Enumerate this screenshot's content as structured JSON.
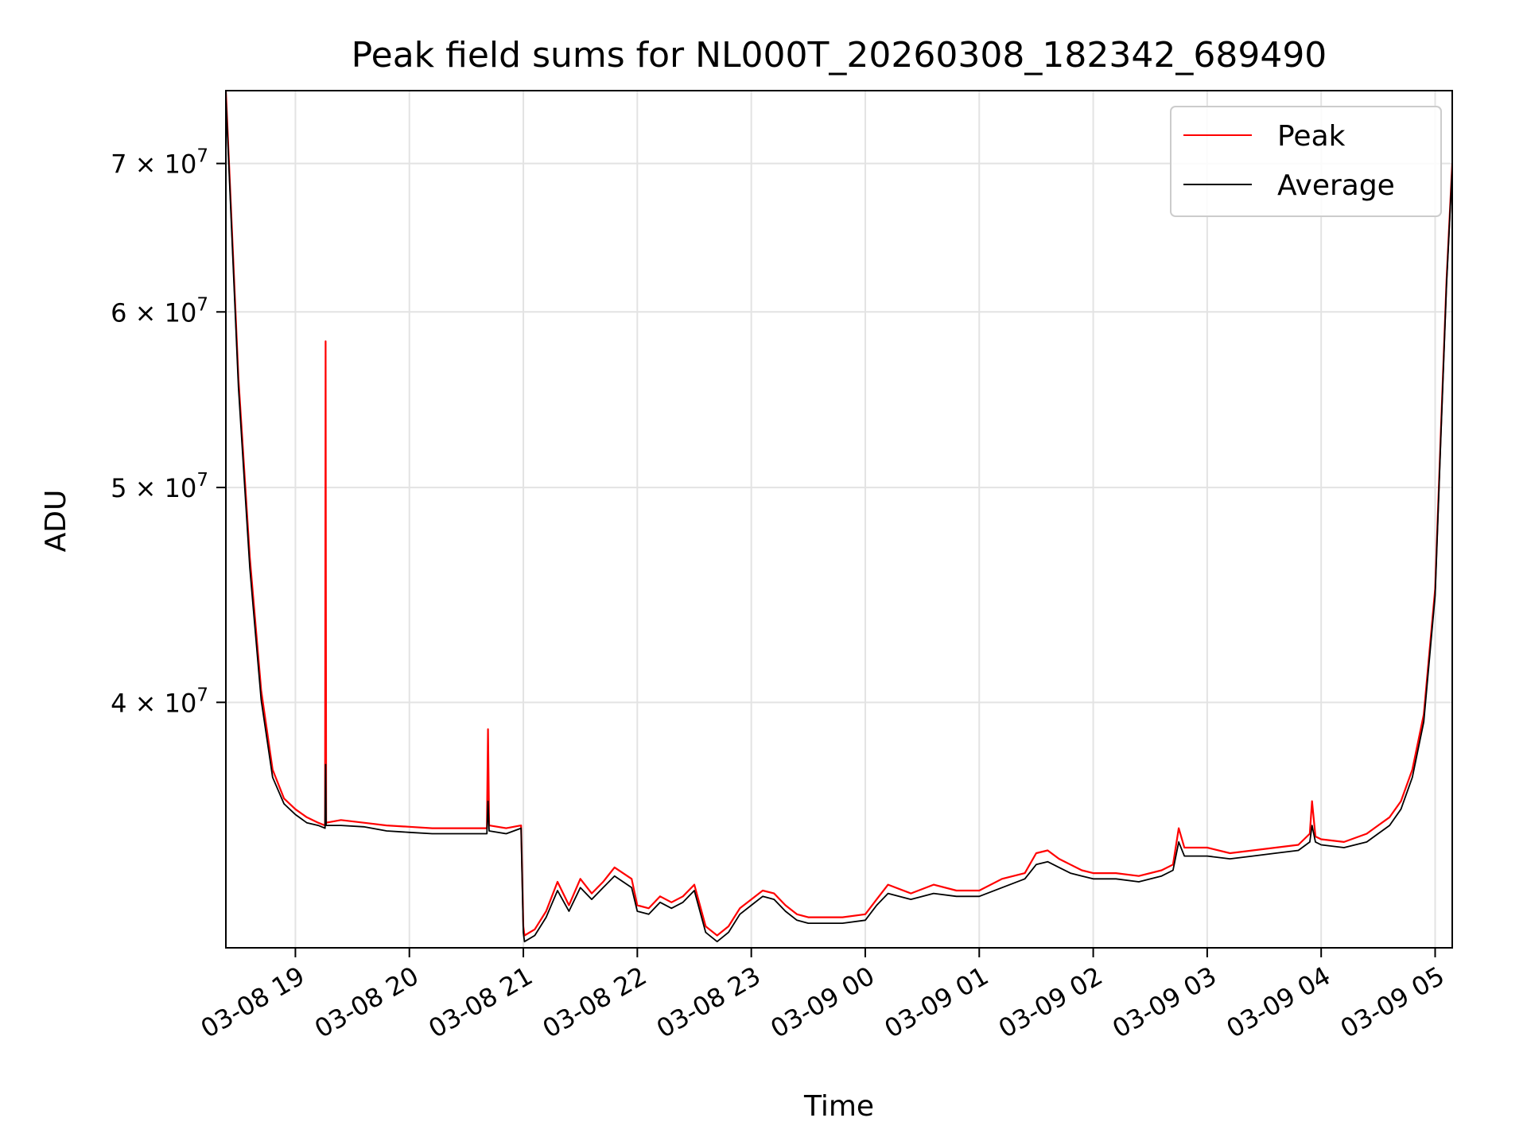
{
  "chart_data": {
    "type": "line",
    "title": "Peak field sums for NL000T_20260308_182342_689490",
    "xlabel": "Time",
    "ylabel": "ADU",
    "yscale": "log",
    "ylim": [
      31000000,
      75500000
    ],
    "xlim_hours": [
      18.39,
      29.15
    ],
    "grid": true,
    "legend_position": "top-right",
    "x_ticks": [
      {
        "hour": 19,
        "label": "03-08 19"
      },
      {
        "hour": 20,
        "label": "03-08 20"
      },
      {
        "hour": 21,
        "label": "03-08 21"
      },
      {
        "hour": 22,
        "label": "03-08 22"
      },
      {
        "hour": 23,
        "label": "03-08 23"
      },
      {
        "hour": 24,
        "label": "03-09 00"
      },
      {
        "hour": 25,
        "label": "03-09 01"
      },
      {
        "hour": 26,
        "label": "03-09 02"
      },
      {
        "hour": 27,
        "label": "03-09 03"
      },
      {
        "hour": 28,
        "label": "03-09 04"
      },
      {
        "hour": 29,
        "label": "03-09 05"
      }
    ],
    "y_ticks": [
      {
        "value": 40000000,
        "mantissa": "4",
        "exponent": "7"
      },
      {
        "value": 50000000,
        "mantissa": "5",
        "exponent": "7"
      },
      {
        "value": 60000000,
        "mantissa": "6",
        "exponent": "7"
      },
      {
        "value": 70000000,
        "mantissa": "7",
        "exponent": "7"
      }
    ],
    "series": [
      {
        "name": "Peak",
        "color": "#ff0000",
        "x_hours": [
          18.39,
          18.5,
          18.6,
          18.7,
          18.8,
          18.9,
          19.0,
          19.1,
          19.2,
          19.26,
          19.265,
          19.27,
          19.4,
          19.6,
          19.8,
          20.0,
          20.2,
          20.5,
          20.68,
          20.69,
          20.7,
          20.85,
          20.98,
          21.0,
          21.01,
          21.1,
          21.2,
          21.3,
          21.4,
          21.5,
          21.6,
          21.7,
          21.8,
          21.95,
          22.0,
          22.1,
          22.2,
          22.3,
          22.4,
          22.5,
          22.6,
          22.7,
          22.8,
          22.9,
          23.0,
          23.1,
          23.2,
          23.3,
          23.4,
          23.5,
          23.6,
          23.8,
          24.0,
          24.1,
          24.2,
          24.4,
          24.6,
          24.8,
          25.0,
          25.2,
          25.4,
          25.5,
          25.6,
          25.7,
          25.8,
          25.9,
          26.0,
          26.2,
          26.4,
          26.6,
          26.7,
          26.75,
          26.8,
          27.0,
          27.2,
          27.4,
          27.6,
          27.8,
          27.9,
          27.92,
          27.95,
          28.0,
          28.2,
          28.4,
          28.5,
          28.6,
          28.7,
          28.8,
          28.9,
          29.0,
          29.05,
          29.1,
          29.15
        ],
        "values": [
          75500000,
          56000000,
          46500000,
          40500000,
          37300000,
          36200000,
          35800000,
          35500000,
          35300000,
          35200000,
          58200000,
          35300000,
          35400000,
          35300000,
          35200000,
          35150000,
          35100000,
          35100000,
          35100000,
          38900000,
          35200000,
          35100000,
          35200000,
          31700000,
          31400000,
          31600000,
          32200000,
          33200000,
          32400000,
          33300000,
          32800000,
          33200000,
          33700000,
          33300000,
          32400000,
          32300000,
          32700000,
          32500000,
          32700000,
          33100000,
          31700000,
          31400000,
          31700000,
          32300000,
          32600000,
          32900000,
          32800000,
          32400000,
          32100000,
          32000000,
          32000000,
          32000000,
          32100000,
          32600000,
          33100000,
          32800000,
          33100000,
          32900000,
          32900000,
          33300000,
          33500000,
          34200000,
          34300000,
          34000000,
          33800000,
          33600000,
          33500000,
          33500000,
          33400000,
          33600000,
          33800000,
          35100000,
          34400000,
          34400000,
          34200000,
          34300000,
          34400000,
          34500000,
          34900000,
          36100000,
          34800000,
          34700000,
          34600000,
          34900000,
          35200000,
          35500000,
          36100000,
          37300000,
          39500000,
          45000000,
          53000000,
          62000000,
          70000000
        ]
      },
      {
        "name": "Average",
        "color": "#000000",
        "x_hours": [
          18.39,
          18.5,
          18.6,
          18.7,
          18.8,
          18.9,
          19.0,
          19.1,
          19.2,
          19.26,
          19.265,
          19.27,
          19.4,
          19.6,
          19.8,
          20.0,
          20.2,
          20.5,
          20.68,
          20.69,
          20.7,
          20.85,
          20.98,
          21.0,
          21.01,
          21.1,
          21.2,
          21.3,
          21.4,
          21.5,
          21.6,
          21.7,
          21.8,
          21.95,
          22.0,
          22.1,
          22.2,
          22.3,
          22.4,
          22.5,
          22.6,
          22.7,
          22.8,
          22.9,
          23.0,
          23.1,
          23.2,
          23.3,
          23.4,
          23.5,
          23.6,
          23.8,
          24.0,
          24.1,
          24.2,
          24.4,
          24.6,
          24.8,
          25.0,
          25.2,
          25.4,
          25.5,
          25.6,
          25.7,
          25.8,
          25.9,
          26.0,
          26.2,
          26.4,
          26.6,
          26.7,
          26.75,
          26.8,
          27.0,
          27.2,
          27.4,
          27.6,
          27.8,
          27.9,
          27.92,
          27.95,
          28.0,
          28.2,
          28.4,
          28.5,
          28.6,
          28.7,
          28.8,
          28.9,
          29.0,
          29.05,
          29.1,
          29.15
        ],
        "values": [
          75000000,
          55500000,
          46000000,
          40100000,
          37000000,
          36000000,
          35600000,
          35300000,
          35200000,
          35100000,
          37500000,
          35200000,
          35200000,
          35150000,
          35000000,
          34950000,
          34900000,
          34900000,
          34900000,
          36100000,
          35000000,
          34900000,
          35100000,
          31500000,
          31200000,
          31400000,
          32000000,
          32900000,
          32200000,
          33000000,
          32600000,
          33000000,
          33400000,
          33000000,
          32200000,
          32100000,
          32500000,
          32300000,
          32500000,
          32900000,
          31500000,
          31200000,
          31500000,
          32100000,
          32400000,
          32700000,
          32600000,
          32200000,
          31900000,
          31800000,
          31800000,
          31800000,
          31900000,
          32400000,
          32800000,
          32600000,
          32800000,
          32700000,
          32700000,
          33000000,
          33300000,
          33800000,
          33900000,
          33700000,
          33500000,
          33400000,
          33300000,
          33300000,
          33200000,
          33400000,
          33600000,
          34600000,
          34100000,
          34100000,
          34000000,
          34100000,
          34200000,
          34300000,
          34600000,
          35200000,
          34600000,
          34500000,
          34400000,
          34600000,
          34900000,
          35200000,
          35800000,
          37000000,
          39200000,
          44700000,
          52700000,
          61700000,
          69700000
        ]
      }
    ]
  }
}
